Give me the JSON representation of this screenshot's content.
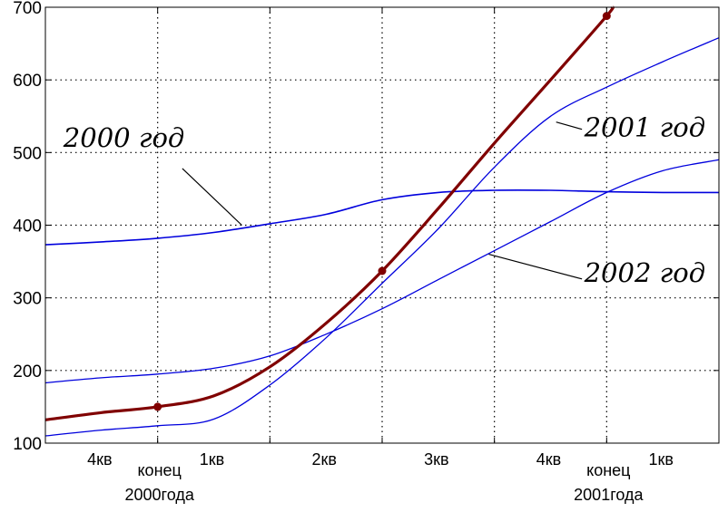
{
  "chart_data": {
    "type": "line",
    "ylim": [
      100,
      700
    ],
    "xlim": [
      0,
      6
    ],
    "y_ticks": [
      100,
      200,
      300,
      400,
      500,
      600,
      700
    ],
    "x_grid": [
      1,
      2,
      3,
      4,
      5
    ],
    "grid": true,
    "x_tick_labels": [
      {
        "x": 0.5,
        "text": "4кв"
      },
      {
        "x": 1.5,
        "text": "1кв"
      },
      {
        "x": 2.5,
        "text": "2кв"
      },
      {
        "x": 3.5,
        "text": "3кв"
      },
      {
        "x": 4.5,
        "text": "4кв"
      },
      {
        "x": 5.5,
        "text": "1кв"
      }
    ],
    "x_annotations": [
      {
        "x": 1,
        "lines": [
          "конец",
          "2000года"
        ]
      },
      {
        "x": 5,
        "lines": [
          "конец",
          "2001года"
        ]
      }
    ],
    "series": [
      {
        "name": "2000 год",
        "color": "#0000dd",
        "width": 1.6,
        "points": [
          [
            0,
            373
          ],
          [
            0.5,
            377
          ],
          [
            1,
            382
          ],
          [
            1.5,
            390
          ],
          [
            2,
            402
          ],
          [
            2.5,
            415
          ],
          [
            3,
            435
          ],
          [
            3.5,
            445
          ],
          [
            4,
            448
          ],
          [
            4.5,
            448
          ],
          [
            5,
            446
          ],
          [
            5.5,
            445
          ],
          [
            6,
            445
          ]
        ]
      },
      {
        "name": "2001 год",
        "color": "#0000dd",
        "width": 1.3,
        "points": [
          [
            0,
            110
          ],
          [
            0.5,
            118
          ],
          [
            1,
            124
          ],
          [
            1.5,
            133
          ],
          [
            2,
            180
          ],
          [
            2.5,
            245
          ],
          [
            3,
            320
          ],
          [
            3.5,
            395
          ],
          [
            4,
            480
          ],
          [
            4.5,
            550
          ],
          [
            5,
            590
          ],
          [
            5.5,
            625
          ],
          [
            6,
            658
          ]
        ]
      },
      {
        "name": "2002 год",
        "color": "#0000dd",
        "width": 1.3,
        "points": [
          [
            0,
            183
          ],
          [
            0.5,
            190
          ],
          [
            1,
            195
          ],
          [
            1.5,
            203
          ],
          [
            2,
            220
          ],
          [
            2.5,
            250
          ],
          [
            3,
            285
          ],
          [
            3.5,
            325
          ],
          [
            4,
            365
          ],
          [
            4.5,
            405
          ],
          [
            5,
            445
          ],
          [
            5.5,
            475
          ],
          [
            6,
            490
          ]
        ]
      },
      {
        "name": "",
        "color": "#800000",
        "width": 3.2,
        "points": [
          [
            0,
            132
          ],
          [
            0.5,
            142
          ],
          [
            1,
            150
          ],
          [
            1.5,
            165
          ],
          [
            2,
            205
          ],
          [
            2.5,
            265
          ],
          [
            3,
            337
          ],
          [
            3.5,
            423
          ],
          [
            4,
            513
          ],
          [
            4.5,
            600
          ],
          [
            5,
            688
          ],
          [
            5.05,
            700
          ]
        ],
        "markers": [
          [
            1,
            150
          ],
          [
            3,
            337
          ],
          [
            5,
            688
          ]
        ]
      }
    ],
    "annotations": [
      {
        "text": "2000 год",
        "tx": 0.7,
        "ty": 508,
        "ax": 1.22,
        "ay": 478,
        "bx": 1.75,
        "by": 400
      },
      {
        "text": "2001 год",
        "tx": 4.8,
        "ty": 522,
        "ax": 4.78,
        "ay": 532,
        "bx": 4.55,
        "by": 542
      },
      {
        "text": "2002 год",
        "tx": 4.8,
        "ty": 322,
        "ax": 4.78,
        "ay": 326,
        "bx": 3.95,
        "by": 360
      }
    ]
  }
}
